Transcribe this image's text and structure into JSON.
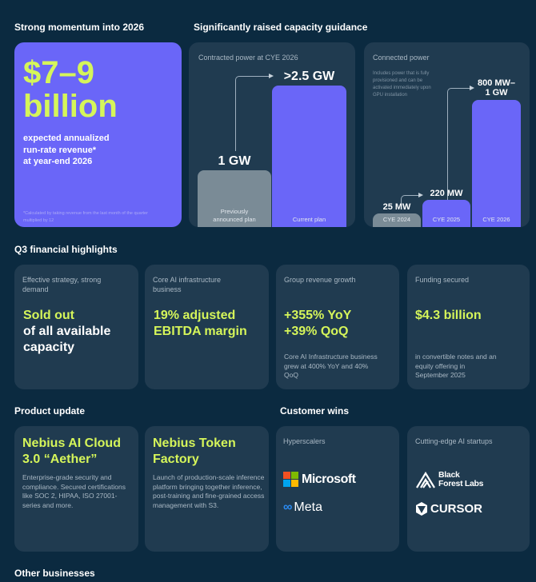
{
  "sections": {
    "momentum": "Strong momentum into 2026",
    "capacity": "Significantly raised capacity guidance",
    "q3": "Q3 financial highlights",
    "product": "Product update",
    "customers": "Customer wins",
    "other": "Other businesses"
  },
  "revenue": {
    "headline1": "$7–9",
    "headline2": "billion",
    "desc1": "expected annualized",
    "desc2": "run-rate revenue*",
    "desc3": "at year-end 2026",
    "footnote": "*Calculated by taking revenue from the last month of the quarter multiplied by 12"
  },
  "contracted": {
    "title": "Contracted power at CYE 2026",
    "bars": [
      {
        "label": "Previously announced plan",
        "value": "1 GW",
        "gw": 1
      },
      {
        "label": "Current plan",
        "value": ">2.5 GW",
        "gw": 2.5
      }
    ]
  },
  "connected": {
    "title": "Connected power",
    "note": "Includes power that is fully provisioned and can be activated immediately upon GPU installation",
    "bars": [
      {
        "label": "CYE 2024",
        "value": "25 MW"
      },
      {
        "label": "CYE 2025",
        "value": "220 MW"
      },
      {
        "label": "CYE 2026",
        "value1": "800 MW–",
        "value2": "1 GW"
      }
    ]
  },
  "highlights": [
    {
      "label": "Effective strategy, strong demand",
      "accent": "Sold out",
      "main": "of all available capacity"
    },
    {
      "label": "Core AI infrastructure business",
      "accent": "19% adjusted EBITDA margin"
    },
    {
      "label": "Group revenue growth",
      "accent1": "+355% YoY",
      "accent2": "+39% QoQ",
      "note": "Core AI Infrastructure business grew at 400% YoY and 40% QoQ"
    },
    {
      "label": "Funding secured",
      "accent": "$4.3 billion",
      "note": "in convertible notes and an equity offering in September 2025"
    }
  ],
  "products": [
    {
      "title": "Nebius AI Cloud 3.0 “Aether”",
      "desc": "Enterprise-grade security and compliance. Secured certifications like SOC 2, HIPAA, ISO 27001-series and more."
    },
    {
      "title": "Nebius Token Factory",
      "desc": "Launch of production-scale inference platform bringing together inference, post-training and fine-grained access management with S3."
    }
  ],
  "customers": [
    {
      "label": "Hyperscalers",
      "logos": [
        "Microsoft",
        "Meta"
      ]
    },
    {
      "label": "Cutting-edge AI startups",
      "logos": [
        "Black",
        "Forest Labs",
        "CURSOR"
      ]
    }
  ],
  "colors": {
    "bg": "#0b2a40",
    "card": "#203b50",
    "accent": "#d5f55a",
    "purple": "#6a66f8",
    "gray": "#7a8b96"
  }
}
